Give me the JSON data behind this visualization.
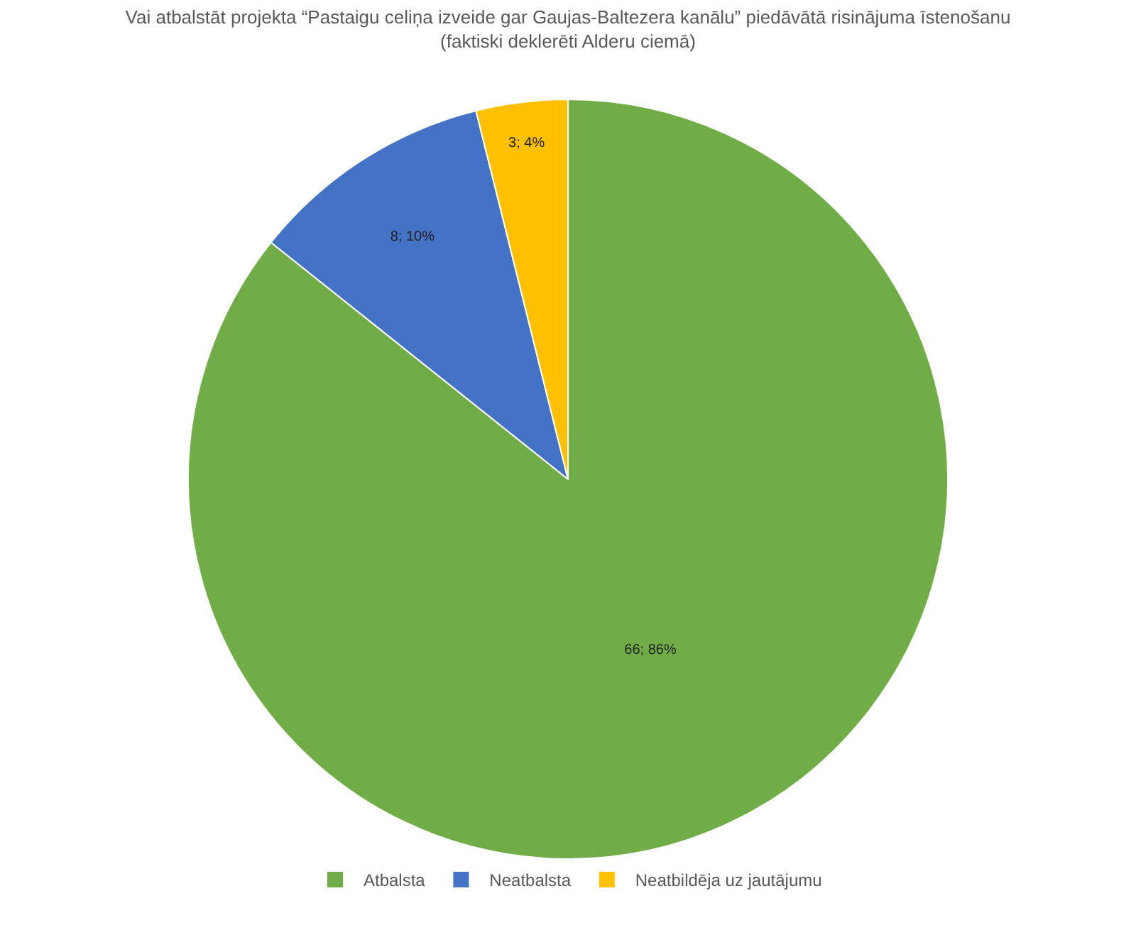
{
  "chart_data": {
    "type": "pie",
    "title": "Vai atbalstāt projekta “Pastaigu celiņa izveide gar Gaujas-Baltezera kanālu” piedāvātā risinājuma īstenošanu (faktiski deklerēti Alderu ciemā)",
    "categories": [
      "Atbalsta",
      "Neatbalsta",
      "Neatbildēja uz jautājumu"
    ],
    "values": [
      66,
      8,
      3
    ],
    "colors": [
      "#70ad47",
      "#4472c4",
      "#ffc000"
    ],
    "value_labels": [
      "66; 86%",
      "8; 10%",
      "3; 4%"
    ],
    "legend": "bottom"
  }
}
